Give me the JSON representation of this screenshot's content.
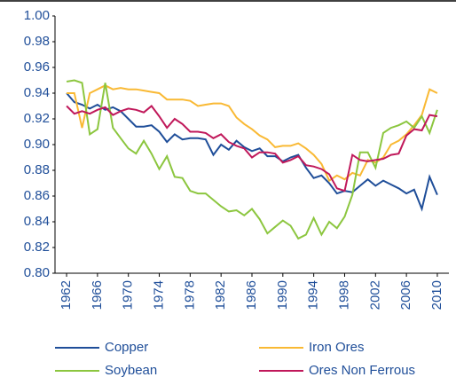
{
  "chart_data": {
    "type": "line",
    "x": [
      1962,
      1963,
      1964,
      1965,
      1966,
      1967,
      1968,
      1969,
      1970,
      1971,
      1972,
      1973,
      1974,
      1975,
      1976,
      1977,
      1978,
      1979,
      1980,
      1981,
      1982,
      1983,
      1984,
      1985,
      1986,
      1987,
      1988,
      1989,
      1990,
      1991,
      1992,
      1993,
      1994,
      1995,
      1996,
      1997,
      1998,
      1999,
      2000,
      2001,
      2002,
      2003,
      2004,
      2005,
      2006,
      2007,
      2008,
      2009,
      2010
    ],
    "series": [
      {
        "name": "Copper",
        "color": "#1f4e99",
        "values": [
          0.94,
          0.933,
          0.931,
          0.928,
          0.931,
          0.927,
          0.929,
          0.926,
          0.92,
          0.914,
          0.914,
          0.915,
          0.91,
          0.902,
          0.908,
          0.904,
          0.905,
          0.905,
          0.904,
          0.892,
          0.9,
          0.896,
          0.903,
          0.898,
          0.895,
          0.897,
          0.891,
          0.891,
          0.887,
          0.89,
          0.892,
          0.882,
          0.874,
          0.876,
          0.87,
          0.862,
          0.864,
          0.863,
          0.868,
          0.873,
          0.868,
          0.872,
          0.869,
          0.866,
          0.862,
          0.865,
          0.85,
          0.875,
          0.861
        ]
      },
      {
        "name": "Iron Ores",
        "color": "#f9b934",
        "values": [
          0.94,
          0.94,
          0.913,
          0.94,
          0.943,
          0.946,
          0.943,
          0.944,
          0.943,
          0.943,
          0.942,
          0.941,
          0.94,
          0.935,
          0.935,
          0.935,
          0.934,
          0.93,
          0.931,
          0.932,
          0.932,
          0.93,
          0.921,
          0.916,
          0.912,
          0.907,
          0.904,
          0.898,
          0.899,
          0.899,
          0.901,
          0.897,
          0.892,
          0.885,
          0.872,
          0.876,
          0.873,
          0.878,
          0.876,
          0.888,
          0.886,
          0.89,
          0.9,
          0.903,
          0.908,
          0.915,
          0.923,
          0.943,
          0.94
        ]
      },
      {
        "name": "Soybean",
        "color": "#8cc63f",
        "values": [
          0.949,
          0.95,
          0.948,
          0.908,
          0.912,
          0.948,
          0.913,
          0.905,
          0.897,
          0.893,
          0.903,
          0.893,
          0.881,
          0.891,
          0.875,
          0.874,
          0.864,
          0.862,
          0.862,
          0.857,
          0.852,
          0.848,
          0.849,
          0.845,
          0.85,
          0.842,
          0.831,
          0.836,
          0.841,
          0.837,
          0.827,
          0.83,
          0.843,
          0.83,
          0.84,
          0.835,
          0.844,
          0.861,
          0.894,
          0.894,
          0.882,
          0.909,
          0.913,
          0.915,
          0.918,
          0.913,
          0.922,
          0.909,
          0.927
        ]
      },
      {
        "name": "Ores Non Ferrous",
        "color": "#c0185a",
        "values": [
          0.93,
          0.924,
          0.926,
          0.924,
          0.927,
          0.929,
          0.923,
          0.926,
          0.928,
          0.927,
          0.925,
          0.93,
          0.922,
          0.913,
          0.92,
          0.916,
          0.91,
          0.91,
          0.909,
          0.905,
          0.908,
          0.902,
          0.899,
          0.897,
          0.89,
          0.894,
          0.894,
          0.893,
          0.886,
          0.888,
          0.891,
          0.884,
          0.883,
          0.881,
          0.877,
          0.866,
          0.864,
          0.892,
          0.888,
          0.887,
          0.888,
          0.889,
          0.892,
          0.893,
          0.907,
          0.912,
          0.911,
          0.923,
          0.922
        ]
      }
    ],
    "xlim": [
      1960.5,
      2011.5
    ],
    "xticks": [
      1962,
      1966,
      1970,
      1974,
      1978,
      1982,
      1986,
      1990,
      1994,
      1998,
      2002,
      2006,
      2010
    ],
    "ylim": [
      0.8,
      1.0
    ],
    "yticks": [
      {
        "value": 0.8,
        "label": "0.80"
      },
      {
        "value": 0.82,
        "label": "0.82"
      },
      {
        "value": 0.84,
        "label": "0.84"
      },
      {
        "value": 0.86,
        "label": "0.86"
      },
      {
        "value": 0.88,
        "label": "0.88"
      },
      {
        "value": 0.9,
        "label": "0.90"
      },
      {
        "value": 0.92,
        "label": "0.92"
      },
      {
        "value": 0.94,
        "label": "0.94"
      },
      {
        "value": 0.96,
        "label": "0.96"
      },
      {
        "value": 0.98,
        "label": "0.98"
      },
      {
        "value": 1.0,
        "label": "1.00"
      }
    ]
  }
}
